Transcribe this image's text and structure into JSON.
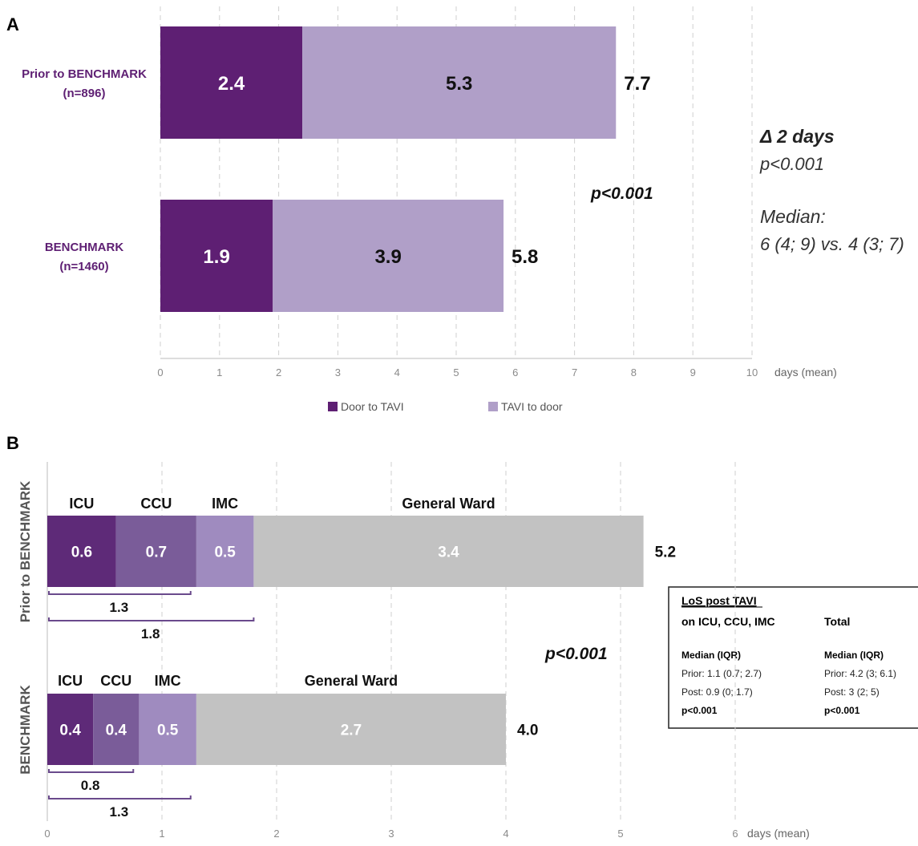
{
  "panels": {
    "A": {
      "label": "A"
    },
    "B": {
      "label": "B"
    }
  },
  "colors": {
    "door_to_tavi": "#5e1f73",
    "tavi_to_door": "#b09fc8",
    "icu": "#5e2a78",
    "ccu": "#7a5c99",
    "imc": "#9f8bbf",
    "general_ward": "#c2c2c2",
    "group_label": "#5e1f73",
    "grid": "#cfcfcf",
    "axis_text": "#8a8a8a"
  },
  "chart_data": [
    {
      "panel": "A",
      "type": "bar",
      "orientation": "horizontal",
      "stacked": true,
      "categories": [
        "Prior to BENCHMARK\n(n=896)",
        "BENCHMARK\n(n=1460)"
      ],
      "series": [
        {
          "name": "Door to TAVI",
          "values": [
            2.4,
            1.9
          ]
        },
        {
          "name": "TAVI to door",
          "values": [
            5.3,
            3.9
          ]
        }
      ],
      "totals": [
        "7.7",
        "5.8"
      ],
      "segment_labels": [
        [
          "2.4",
          "5.3"
        ],
        [
          "1.9",
          "3.9"
        ]
      ],
      "xlim": [
        0,
        10
      ],
      "xticks": [
        0,
        1,
        2,
        3,
        4,
        5,
        6,
        7,
        8,
        9,
        10
      ],
      "xlabel": "days (mean)",
      "grid": "vertical dashed",
      "legend": "bottom",
      "annotations": {
        "p_between": "p<0.001",
        "delta": "Δ 2 days",
        "delta_p": "p<0.001",
        "median_title": "Median:",
        "median_values": "6 (4; 9) vs. 4 (3; 7)"
      }
    },
    {
      "panel": "B",
      "type": "bar",
      "orientation": "horizontal",
      "stacked": true,
      "categories": [
        "Prior to BENCHMARK",
        "BENCHMARK"
      ],
      "series": [
        {
          "name": "ICU",
          "values": [
            0.6,
            0.4
          ]
        },
        {
          "name": "CCU",
          "values": [
            0.7,
            0.4
          ]
        },
        {
          "name": "IMC",
          "values": [
            0.5,
            0.5
          ]
        },
        {
          "name": "General Ward",
          "values": [
            3.4,
            2.7
          ]
        }
      ],
      "segment_labels": [
        [
          "0.6",
          "0.7",
          "0.5",
          "3.4"
        ],
        [
          "0.4",
          "0.4",
          "0.5",
          "2.7"
        ]
      ],
      "totals": [
        "5.2",
        "4.0"
      ],
      "brackets": [
        [
          {
            "label": "1.3",
            "end": 1.25
          },
          {
            "label": "1.8",
            "end": 1.8
          }
        ],
        [
          {
            "label": "0.8",
            "end": 0.75
          },
          {
            "label": "1.3",
            "end": 1.25
          }
        ]
      ],
      "xlim": [
        0,
        6
      ],
      "xticks": [
        0,
        1,
        2,
        3,
        4,
        5,
        6
      ],
      "xlabel": "days (mean)",
      "grid": "vertical dashed",
      "annotations": {
        "p_between": "p<0.001"
      },
      "info_box": {
        "title": "LoS post TAVI",
        "col1_header": "on ICU, CCU, IMC",
        "col2_header": "Total",
        "col1_sub": "Median (IQR)",
        "col2_sub": "Median (IQR)",
        "col1_prior": "Prior: 1.1 (0.7; 2.7)",
        "col2_prior": "Prior: 4.2 (3; 6.1)",
        "col1_post": "Post: 0.9 (0; 1.7)",
        "col2_post": "Post: 3 (2; 5)",
        "col1_p": "p<0.001",
        "col2_p": "p<0.001"
      }
    }
  ]
}
